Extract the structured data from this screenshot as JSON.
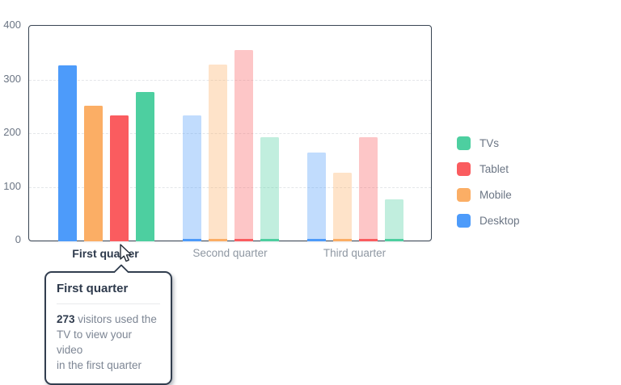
{
  "chart_data": {
    "type": "bar",
    "title": "",
    "categories": [
      "First quarter",
      "Second quarter",
      "Third quarter"
    ],
    "series": [
      {
        "name": "Desktop",
        "color": "#4d9bfa",
        "values": [
          323,
          230,
          161
        ]
      },
      {
        "name": "Mobile",
        "color": "#fbae65",
        "values": [
          248,
          325,
          123
        ]
      },
      {
        "name": "Tablet",
        "color": "#fa5c5f",
        "values": [
          230,
          352,
          190
        ]
      },
      {
        "name": "TVs",
        "color": "#4dcfa0",
        "values": [
          273,
          190,
          74
        ]
      }
    ],
    "legend": [
      {
        "label": "TVs",
        "color": "#4dcfa0"
      },
      {
        "label": "Tablet",
        "color": "#fa5c5f"
      },
      {
        "label": "Mobile",
        "color": "#fbae65"
      },
      {
        "label": "Desktop",
        "color": "#4d9bfa"
      }
    ],
    "legend_position": "right",
    "ylim": [
      0,
      400
    ],
    "yticks": [
      0,
      100,
      200,
      300,
      400
    ],
    "grid": "horizontal-dashed",
    "highlighted_category": "First quarter",
    "highlighted_index": 0,
    "faded_opacity": 0.35
  },
  "tooltip": {
    "title": "First quarter",
    "value": "273",
    "text": " visitors used the\nTV to view your video\nin the first quarter"
  },
  "colors": {
    "chart_border": "#3a4654",
    "grid": "#e4e6e9",
    "axis_text": "#6b7584",
    "active_text": "#2e3a4c",
    "muted_text": "#6f7a88",
    "tooltip_body_text": "#7d8694"
  }
}
